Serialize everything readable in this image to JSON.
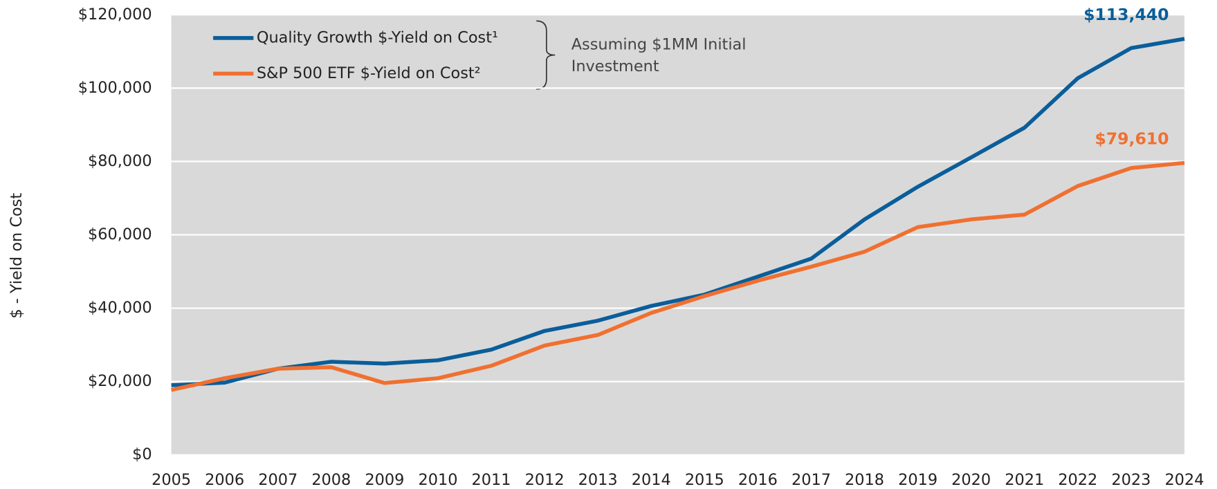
{
  "chart_data": {
    "type": "line",
    "y_label": "$ - Yield on Cost",
    "annotation": "Assuming $1MM Initial Investment",
    "x": [
      2005,
      2006,
      2007,
      2008,
      2009,
      2010,
      2011,
      2012,
      2013,
      2014,
      2015,
      2016,
      2017,
      2018,
      2019,
      2020,
      2021,
      2022,
      2023,
      2024
    ],
    "xlim": [
      2005,
      2024
    ],
    "xticks": [
      2005,
      2006,
      2007,
      2008,
      2009,
      2010,
      2011,
      2012,
      2013,
      2014,
      2015,
      2016,
      2017,
      2018,
      2019,
      2020,
      2021,
      2022,
      2023,
      2024
    ],
    "ylim": [
      0,
      120000
    ],
    "yticks": [
      {
        "value": 0,
        "label": "$0"
      },
      {
        "value": 20000,
        "label": "$20,000"
      },
      {
        "value": 40000,
        "label": "$40,000"
      },
      {
        "value": 60000,
        "label": "$60,000"
      },
      {
        "value": 80000,
        "label": "$80,000"
      },
      {
        "value": 100000,
        "label": "$100,000"
      },
      {
        "value": 120000,
        "label": "$120,000"
      }
    ],
    "grid": true,
    "legend": "upper left",
    "series": [
      {
        "name": "Quality Growth $-Yield on Cost¹",
        "color": "#0a5e9a",
        "values": [
          19000,
          19700,
          23500,
          25400,
          24900,
          25800,
          28700,
          33800,
          36600,
          40600,
          43700,
          48600,
          53500,
          64200,
          73100,
          81100,
          89200,
          102700,
          110900,
          113440
        ],
        "value_labels": [
          null,
          null,
          null,
          null,
          null,
          null,
          null,
          null,
          null,
          null,
          null,
          null,
          null,
          null,
          null,
          null,
          null,
          null,
          null,
          "$113,440"
        ]
      },
      {
        "name": "S&P 500 ETF $-Yield on Cost²",
        "color": "#f07030",
        "values": [
          17700,
          20900,
          23500,
          23900,
          19600,
          20900,
          24300,
          29800,
          32700,
          38700,
          43300,
          47500,
          51300,
          55400,
          62100,
          64200,
          65500,
          73300,
          78200,
          79610
        ],
        "value_labels": [
          null,
          null,
          null,
          null,
          null,
          null,
          null,
          null,
          null,
          null,
          null,
          null,
          null,
          null,
          null,
          null,
          null,
          null,
          null,
          "$79,610"
        ]
      }
    ]
  }
}
